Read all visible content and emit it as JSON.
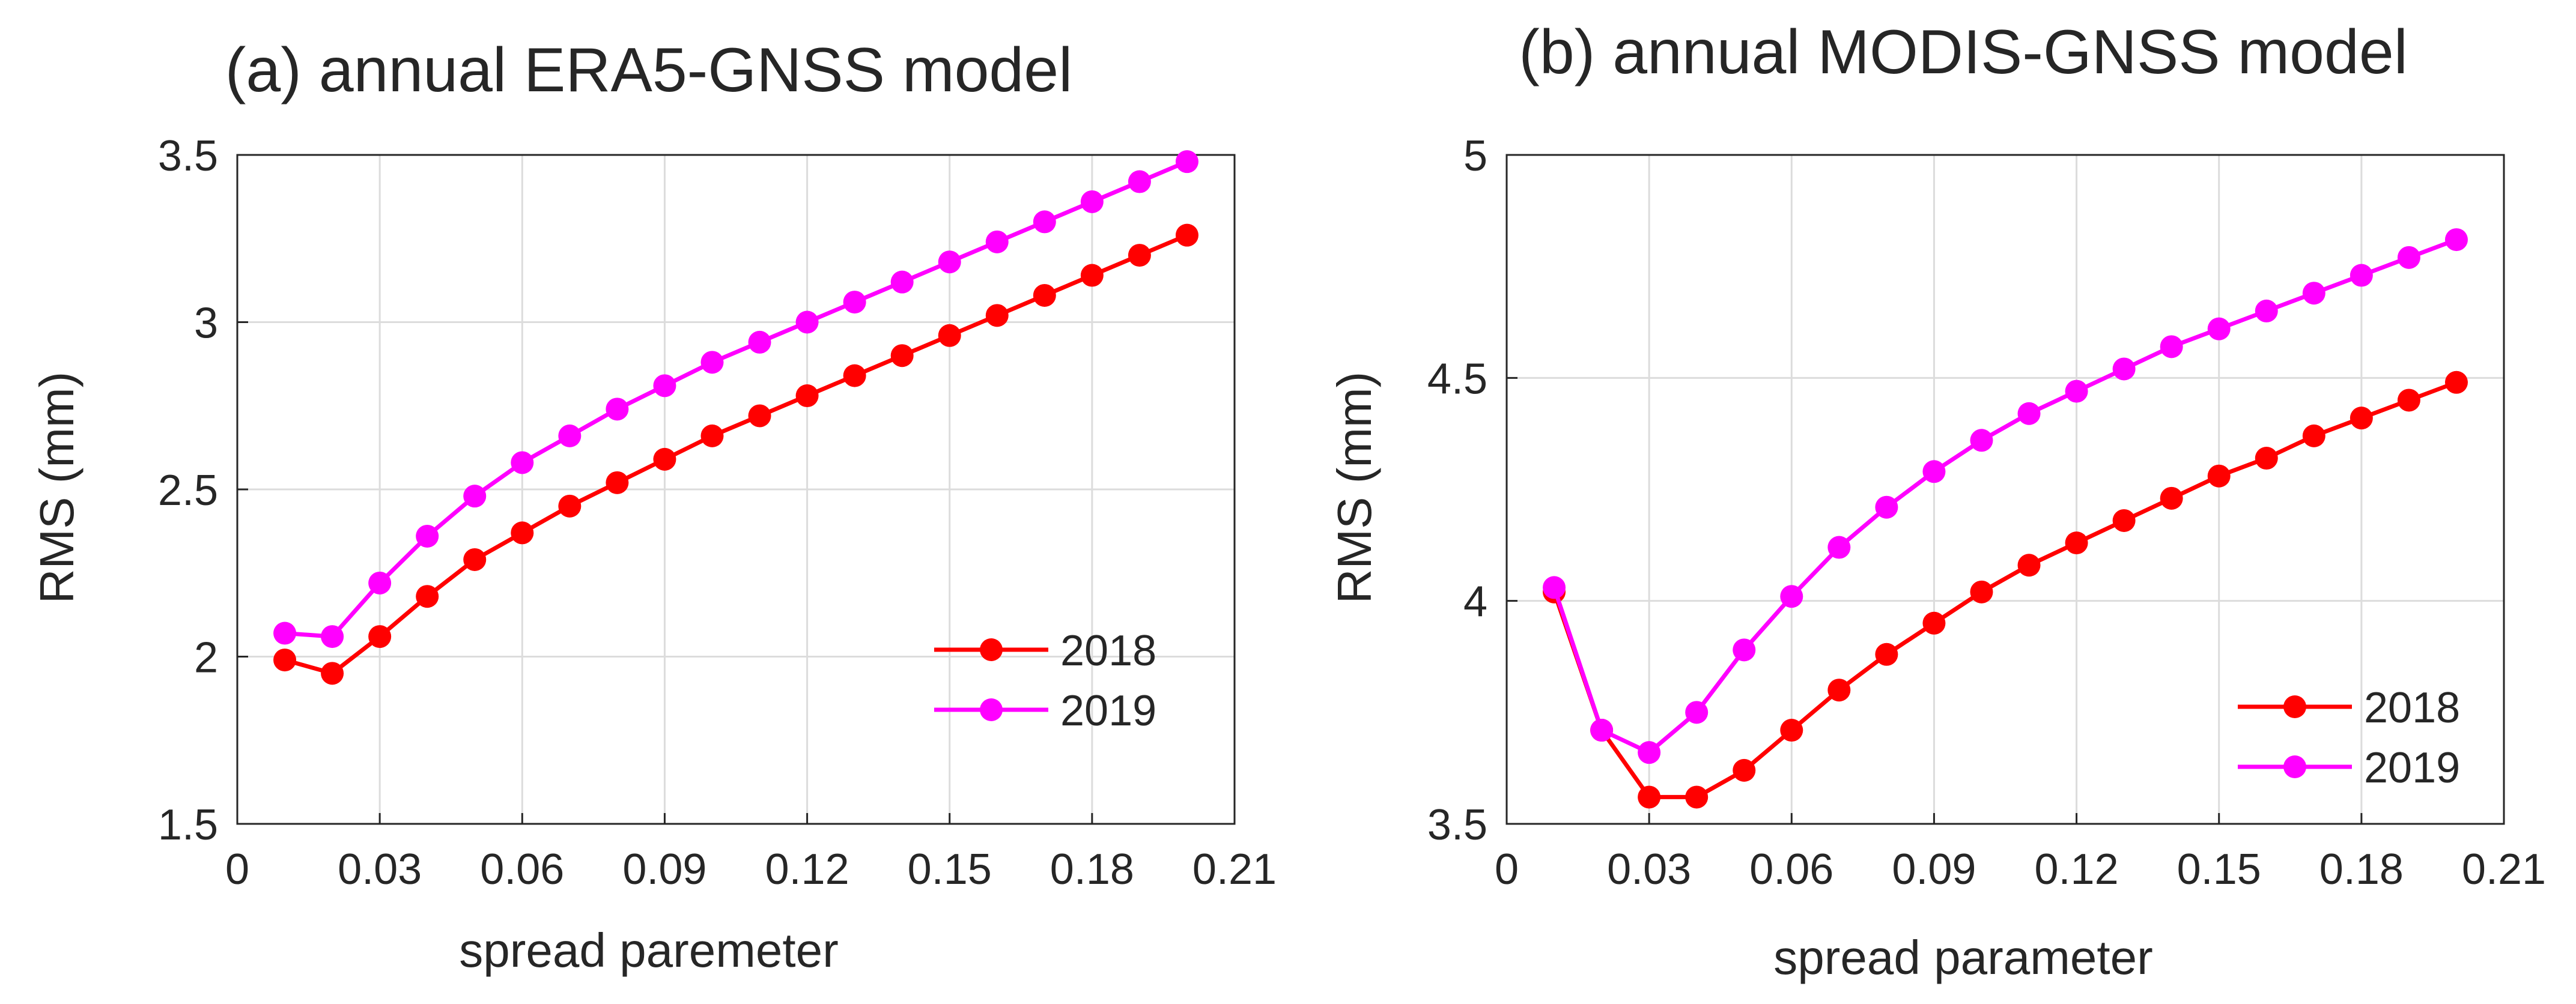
{
  "chart_data": [
    {
      "type": "line",
      "title": "(a) annual ERA5-GNSS model",
      "xlabel": "spread paremeter",
      "ylabel": "RMS (mm)",
      "xlim": [
        0,
        0.21
      ],
      "ylim": [
        1.5,
        3.5
      ],
      "xticks": [
        "0",
        "0.03",
        "0.06",
        "0.09",
        "0.12",
        "0.15",
        "0.18",
        "0.21"
      ],
      "yticks": [
        "1.5",
        "2",
        "2.5",
        "3",
        "3.5"
      ],
      "grid": true,
      "legend_position": "bottom-right",
      "x": [
        0.01,
        0.02,
        0.03,
        0.04,
        0.05,
        0.06,
        0.07,
        0.08,
        0.09,
        0.1,
        0.11,
        0.12,
        0.13,
        0.14,
        0.15,
        0.16,
        0.17,
        0.18,
        0.19,
        0.2
      ],
      "series": [
        {
          "name": "2018",
          "color": "#ff0000",
          "values": [
            1.99,
            1.95,
            2.06,
            2.18,
            2.29,
            2.37,
            2.45,
            2.52,
            2.59,
            2.66,
            2.72,
            2.78,
            2.84,
            2.9,
            2.96,
            3.02,
            3.08,
            3.14,
            3.2,
            3.26
          ]
        },
        {
          "name": "2019",
          "color": "#ff00ff",
          "values": [
            2.07,
            2.06,
            2.22,
            2.36,
            2.48,
            2.58,
            2.66,
            2.74,
            2.81,
            2.88,
            2.94,
            3.0,
            3.06,
            3.12,
            3.18,
            3.24,
            3.3,
            3.36,
            3.42,
            3.48
          ]
        }
      ]
    },
    {
      "type": "line",
      "title": "(b) annual MODIS-GNSS model",
      "xlabel": "spread parameter",
      "ylabel": "RMS (mm)",
      "xlim": [
        0,
        0.21
      ],
      "ylim": [
        3.5,
        5
      ],
      "xticks": [
        "0",
        "0.03",
        "0.06",
        "0.09",
        "0.12",
        "0.15",
        "0.18",
        "0.21"
      ],
      "yticks": [
        "3.5",
        "4",
        "4.5",
        "5"
      ],
      "grid": true,
      "legend_position": "bottom-right",
      "x": [
        0.01,
        0.02,
        0.03,
        0.04,
        0.05,
        0.06,
        0.07,
        0.08,
        0.09,
        0.1,
        0.11,
        0.12,
        0.13,
        0.14,
        0.15,
        0.16,
        0.17,
        0.18,
        0.19,
        0.2
      ],
      "series": [
        {
          "name": "2018",
          "color": "#ff0000",
          "values": [
            4.02,
            3.71,
            3.56,
            3.56,
            3.62,
            3.71,
            3.8,
            3.88,
            3.95,
            4.02,
            4.08,
            4.13,
            4.18,
            4.23,
            4.28,
            4.32,
            4.37,
            4.41,
            4.45,
            4.49
          ]
        },
        {
          "name": "2019",
          "color": "#ff00ff",
          "values": [
            4.03,
            3.71,
            3.66,
            3.75,
            3.89,
            4.01,
            4.12,
            4.21,
            4.29,
            4.36,
            4.42,
            4.47,
            4.52,
            4.57,
            4.61,
            4.65,
            4.69,
            4.73,
            4.77,
            4.81
          ]
        }
      ]
    }
  ]
}
